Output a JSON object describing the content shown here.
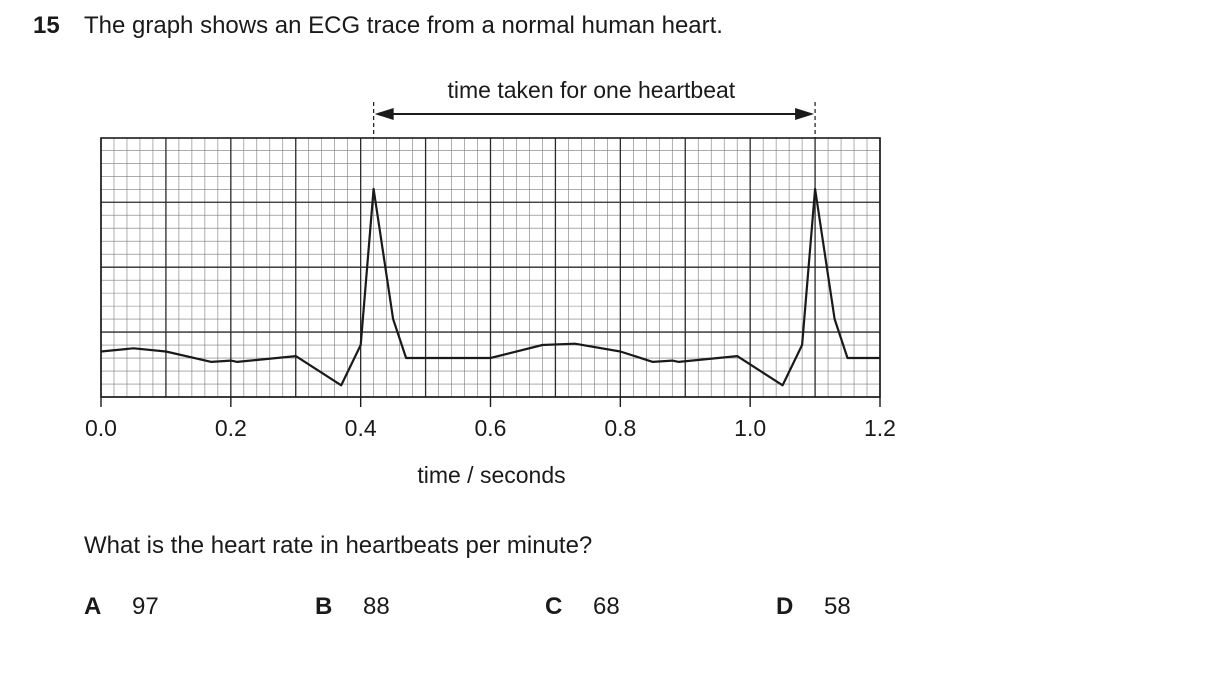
{
  "question": {
    "number": "15",
    "text": "The graph shows an ECG trace from a normal human heart.",
    "prompt": "What is the heart rate in heartbeats per minute?",
    "options": [
      {
        "letter": "A",
        "value": "97"
      },
      {
        "letter": "B",
        "value": "88"
      },
      {
        "letter": "C",
        "value": "68"
      },
      {
        "letter": "D",
        "value": "58"
      }
    ]
  },
  "chart_data": {
    "type": "line",
    "title": "",
    "xlabel": "time / seconds",
    "ylabel": "",
    "xlim": [
      0,
      1.2
    ],
    "x_ticks": [
      "0.0",
      "0.2",
      "0.4",
      "0.6",
      "0.8",
      "1.0",
      "1.2"
    ],
    "grid": true,
    "annotation": {
      "text": "time taken for one heartbeat",
      "from_x": 0.42,
      "to_x": 1.1
    },
    "series": [
      {
        "x": [
          0,
          0.05,
          0.1,
          0.17,
          0.2,
          0.21,
          0.3,
          0.37,
          0.4,
          0.42,
          0.45,
          0.47,
          0.6,
          0.68,
          0.73,
          0.8,
          0.85,
          0.88,
          0.89,
          0.98,
          1.05,
          1.08,
          1.1,
          1.13,
          1.15,
          1.2
        ],
        "y": [
          0.7,
          0.75,
          0.7,
          0.54,
          0.56,
          0.54,
          0.63,
          0.18,
          0.8,
          3.2,
          1.2,
          0.6,
          0.6,
          0.8,
          0.82,
          0.7,
          0.54,
          0.56,
          0.54,
          0.63,
          0.18,
          0.8,
          3.2,
          1.2,
          0.6,
          0.6
        ]
      }
    ]
  }
}
